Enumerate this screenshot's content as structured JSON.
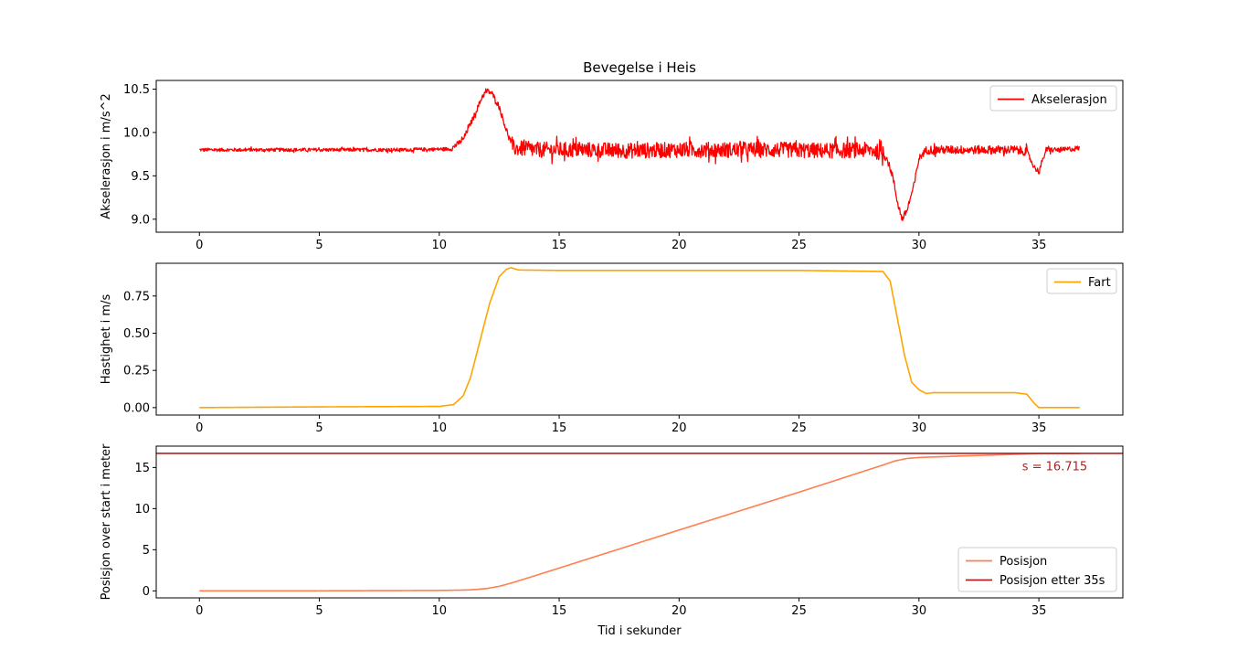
{
  "chart_data": [
    {
      "type": "line",
      "title": "Bevegelse i Heis",
      "xlabel": "",
      "ylabel": "Akselerasjon i m/s^2",
      "xlim": [
        -1.8,
        38.5
      ],
      "ylim": [
        8.85,
        10.6
      ],
      "xticks": [
        0,
        5,
        10,
        15,
        20,
        25,
        30,
        35
      ],
      "yticks": [
        9.0,
        9.5,
        10.0,
        10.5
      ],
      "ytick_labels": [
        "9.0",
        "9.5",
        "10.0",
        "10.5"
      ],
      "legend_position": "top-right",
      "noise_segments": [
        [
          0,
          10.5,
          0.02
        ],
        [
          10.5,
          13,
          0.03
        ],
        [
          13,
          28.6,
          0.09
        ],
        [
          28.6,
          30.3,
          0.04
        ],
        [
          30.3,
          34.5,
          0.05
        ],
        [
          34.5,
          36.7,
          0.03
        ]
      ],
      "series": [
        {
          "name": "Akselerasjon",
          "color": "#ff0000",
          "x": [
            0,
            5,
            8.5,
            10.5,
            11.0,
            11.5,
            11.8,
            12.0,
            12.2,
            12.5,
            12.8,
            13.1,
            14,
            16,
            18,
            20,
            22,
            24,
            26,
            28,
            28.6,
            28.9,
            29.1,
            29.3,
            29.5,
            29.8,
            30.0,
            30.3,
            31,
            32,
            33,
            34,
            34.5,
            34.8,
            35.0,
            35.3,
            36,
            36.7
          ],
          "y": [
            9.8,
            9.8,
            9.8,
            9.81,
            9.92,
            10.22,
            10.42,
            10.48,
            10.45,
            10.3,
            10.02,
            9.82,
            9.8,
            9.8,
            9.79,
            9.8,
            9.8,
            9.8,
            9.79,
            9.8,
            9.75,
            9.5,
            9.2,
            9.0,
            9.1,
            9.4,
            9.7,
            9.8,
            9.8,
            9.8,
            9.8,
            9.8,
            9.78,
            9.6,
            9.55,
            9.8,
            9.8,
            9.82
          ]
        }
      ]
    },
    {
      "type": "line",
      "title": "",
      "xlabel": "",
      "ylabel": "Hastighet i m/s",
      "xlim": [
        -1.8,
        38.5
      ],
      "ylim": [
        -0.05,
        0.97
      ],
      "xticks": [
        0,
        5,
        10,
        15,
        20,
        25,
        30,
        35
      ],
      "yticks": [
        0.0,
        0.25,
        0.5,
        0.75
      ],
      "ytick_labels": [
        "0.00",
        "0.25",
        "0.50",
        "0.75"
      ],
      "legend_position": "top-right",
      "series": [
        {
          "name": "Fart",
          "color": "#ffa500",
          "x": [
            0,
            5,
            10,
            10.6,
            11.0,
            11.3,
            11.7,
            12.1,
            12.5,
            12.8,
            13.0,
            13.3,
            15,
            20,
            25,
            28.5,
            28.8,
            29.1,
            29.4,
            29.7,
            30.0,
            30.3,
            30.6,
            31,
            34,
            34.5,
            34.8,
            35.0,
            36.7
          ],
          "y": [
            0.0,
            0.005,
            0.008,
            0.02,
            0.08,
            0.2,
            0.45,
            0.7,
            0.88,
            0.93,
            0.94,
            0.925,
            0.922,
            0.922,
            0.922,
            0.915,
            0.85,
            0.6,
            0.35,
            0.17,
            0.12,
            0.095,
            0.1,
            0.1,
            0.1,
            0.09,
            0.03,
            0.0,
            0.0
          ]
        }
      ]
    },
    {
      "type": "line",
      "title": "",
      "xlabel": "Tid i sekunder",
      "ylabel": "Posisjon over start i meter",
      "xlim": [
        -1.8,
        38.5
      ],
      "ylim": [
        -0.85,
        17.6
      ],
      "xticks": [
        0,
        5,
        10,
        15,
        20,
        25,
        30,
        35
      ],
      "yticks": [
        0,
        5,
        10,
        15
      ],
      "ytick_labels": [
        "0",
        "5",
        "10",
        "15"
      ],
      "legend_position": "bottom-right",
      "annotation": {
        "text": "s = 16.715",
        "x": 34.3,
        "y": 15.1,
        "color": "#b22222"
      },
      "series": [
        {
          "name": "Posisjon",
          "color": "#ff7f50",
          "x": [
            0,
            5,
            10,
            11,
            11.5,
            12,
            12.5,
            13,
            14,
            16,
            20,
            25,
            28.5,
            29.0,
            29.5,
            30.0,
            30.5,
            32,
            34,
            35,
            36.7
          ],
          "y": [
            0,
            0.01,
            0.05,
            0.1,
            0.16,
            0.3,
            0.55,
            0.95,
            1.85,
            3.7,
            7.4,
            12.0,
            15.3,
            15.8,
            16.1,
            16.22,
            16.27,
            16.42,
            16.6,
            16.7,
            16.7
          ]
        },
        {
          "name": "Posisjon etter 35s",
          "color": "#b22222",
          "hline": 16.715
        }
      ]
    }
  ]
}
